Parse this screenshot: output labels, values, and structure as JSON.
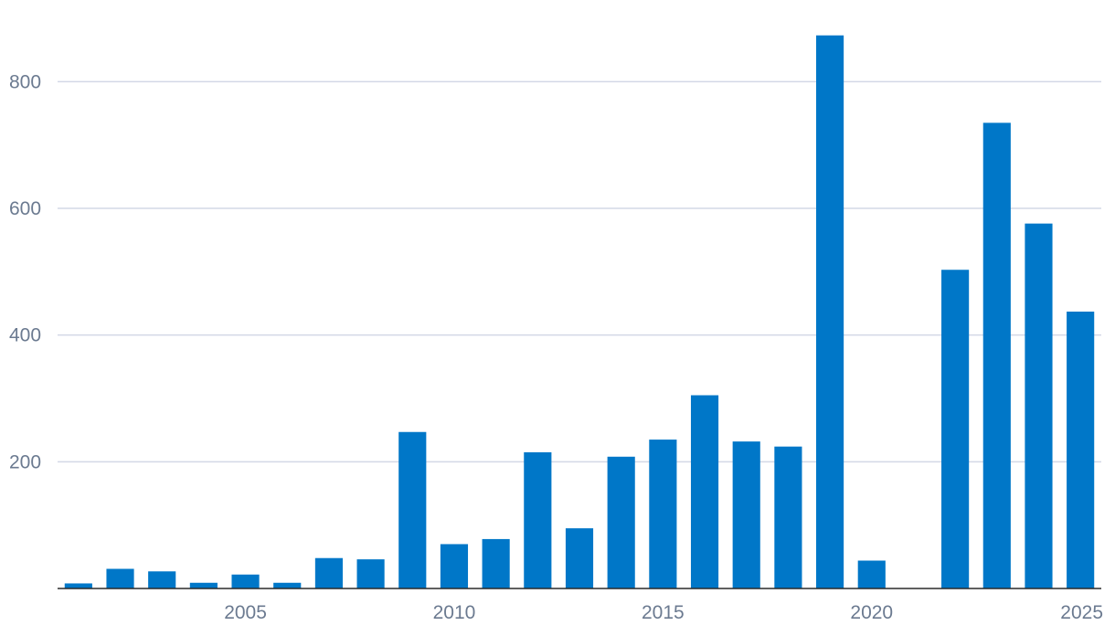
{
  "chart_data": {
    "type": "bar",
    "title": "",
    "xlabel": "",
    "ylabel": "",
    "categories": [
      2001,
      2002,
      2003,
      2004,
      2005,
      2006,
      2007,
      2008,
      2009,
      2010,
      2011,
      2012,
      2013,
      2014,
      2015,
      2016,
      2017,
      2018,
      2019,
      2020,
      2021,
      2022,
      2023,
      2024,
      2025
    ],
    "values": [
      8,
      31,
      27,
      9,
      22,
      9,
      48,
      46,
      247,
      70,
      78,
      215,
      95,
      208,
      235,
      305,
      232,
      224,
      873,
      44,
      0,
      503,
      735,
      576,
      437
    ],
    "ylim": [
      0,
      900
    ],
    "y_ticks": [
      200,
      400,
      600,
      800
    ],
    "x_ticks": [
      2005,
      2010,
      2015,
      2020,
      2025
    ],
    "bar_color": "#0077c8",
    "grid": true,
    "legend": "none"
  }
}
